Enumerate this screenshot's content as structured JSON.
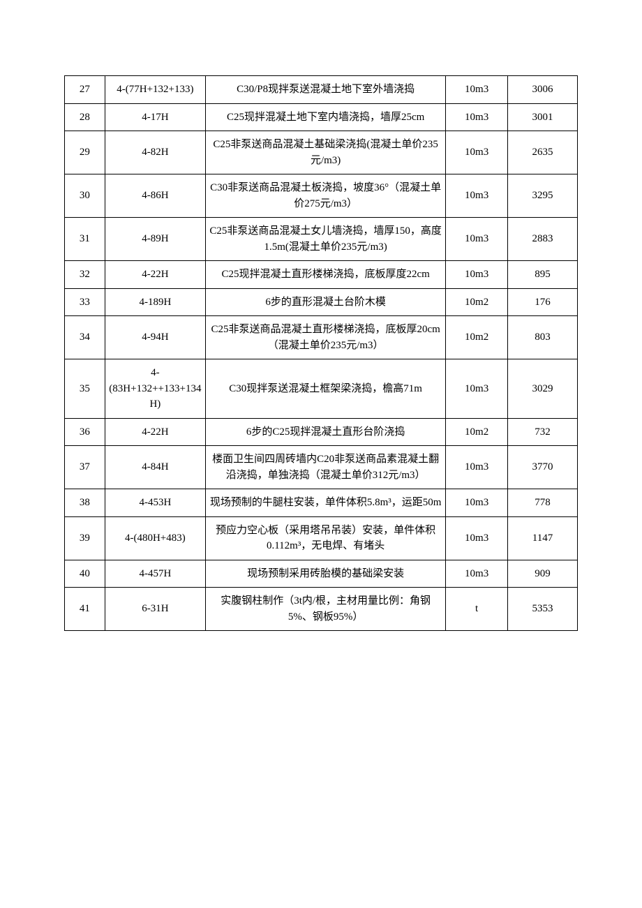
{
  "table": {
    "columns": {
      "idx_width": 52,
      "code_width": 130,
      "desc_width": 310,
      "unit_width": 80,
      "val_width": 90
    },
    "font_size": 15,
    "border_color": "#000000",
    "text_color": "#000000",
    "background_color": "#ffffff",
    "rows": [
      {
        "idx": "27",
        "code": "4-(77H+132+133)",
        "desc": "C30/P8现拌泵送混凝土地下室外墙浇捣",
        "unit": "10m3",
        "val": "3006"
      },
      {
        "idx": "28",
        "code": "4-17H",
        "desc": "C25现拌混凝土地下室内墙浇捣，墙厚25cm",
        "unit": "10m3",
        "val": "3001"
      },
      {
        "idx": "29",
        "code": "4-82H",
        "desc": "C25非泵送商品混凝土基础梁浇捣(混凝土单价235元/m3)",
        "unit": "10m3",
        "val": "2635"
      },
      {
        "idx": "30",
        "code": "4-86H",
        "desc": "C30非泵送商品混凝土板浇捣，坡度36°（混凝土单价275元/m3）",
        "unit": "10m3",
        "val": "3295"
      },
      {
        "idx": "31",
        "code": "4-89H",
        "desc": "C25非泵送商品混凝土女儿墙浇捣，墙厚150，高度1.5m(混凝土单价235元/m3)",
        "unit": "10m3",
        "val": "2883"
      },
      {
        "idx": "32",
        "code": "4-22H",
        "desc": "C25现拌混凝土直形楼梯浇捣，底板厚度22cm",
        "unit": "10m3",
        "val": "895"
      },
      {
        "idx": "33",
        "code": "4-189H",
        "desc": "6步的直形混凝土台阶木模",
        "unit": "10m2",
        "val": "176"
      },
      {
        "idx": "34",
        "code": "4-94H",
        "desc": "C25非泵送商品混凝土直形楼梯浇捣，底板厚20cm（混凝土单价235元/m3）",
        "unit": "10m2",
        "val": "803"
      },
      {
        "idx": "35",
        "code": "4-(83H+132++133+134H)",
        "desc": "C30现拌泵送混凝土框架梁浇捣，檐高71m",
        "unit": "10m3",
        "val": "3029"
      },
      {
        "idx": "36",
        "code": "4-22H",
        "desc": "6步的C25现拌混凝土直形台阶浇捣",
        "unit": "10m2",
        "val": "732"
      },
      {
        "idx": "37",
        "code": "4-84H",
        "desc": "楼面卫生间四周砖墙内C20非泵送商品素混凝土翻沿浇捣，单独浇捣（混凝土单价312元/m3）",
        "unit": "10m3",
        "val": "3770"
      },
      {
        "idx": "38",
        "code": "4-453H",
        "desc": "现场预制的牛腿柱安装，单件体积5.8m³，运距50m",
        "unit": "10m3",
        "val": "778"
      },
      {
        "idx": "39",
        "code": "4-(480H+483)",
        "desc": "预应力空心板（采用塔吊吊装）安装，单件体积0.112m³，无电焊、有堵头",
        "unit": "10m3",
        "val": "1147"
      },
      {
        "idx": "40",
        "code": "4-457H",
        "desc": "现场预制采用砖胎模的基础梁安装",
        "unit": "10m3",
        "val": "909"
      },
      {
        "idx": "41",
        "code": "6-31H",
        "desc": "实腹钢柱制作（3t内/根，主材用量比例：角钢5%、钢板95%）",
        "unit": "t",
        "val": "5353"
      }
    ]
  }
}
